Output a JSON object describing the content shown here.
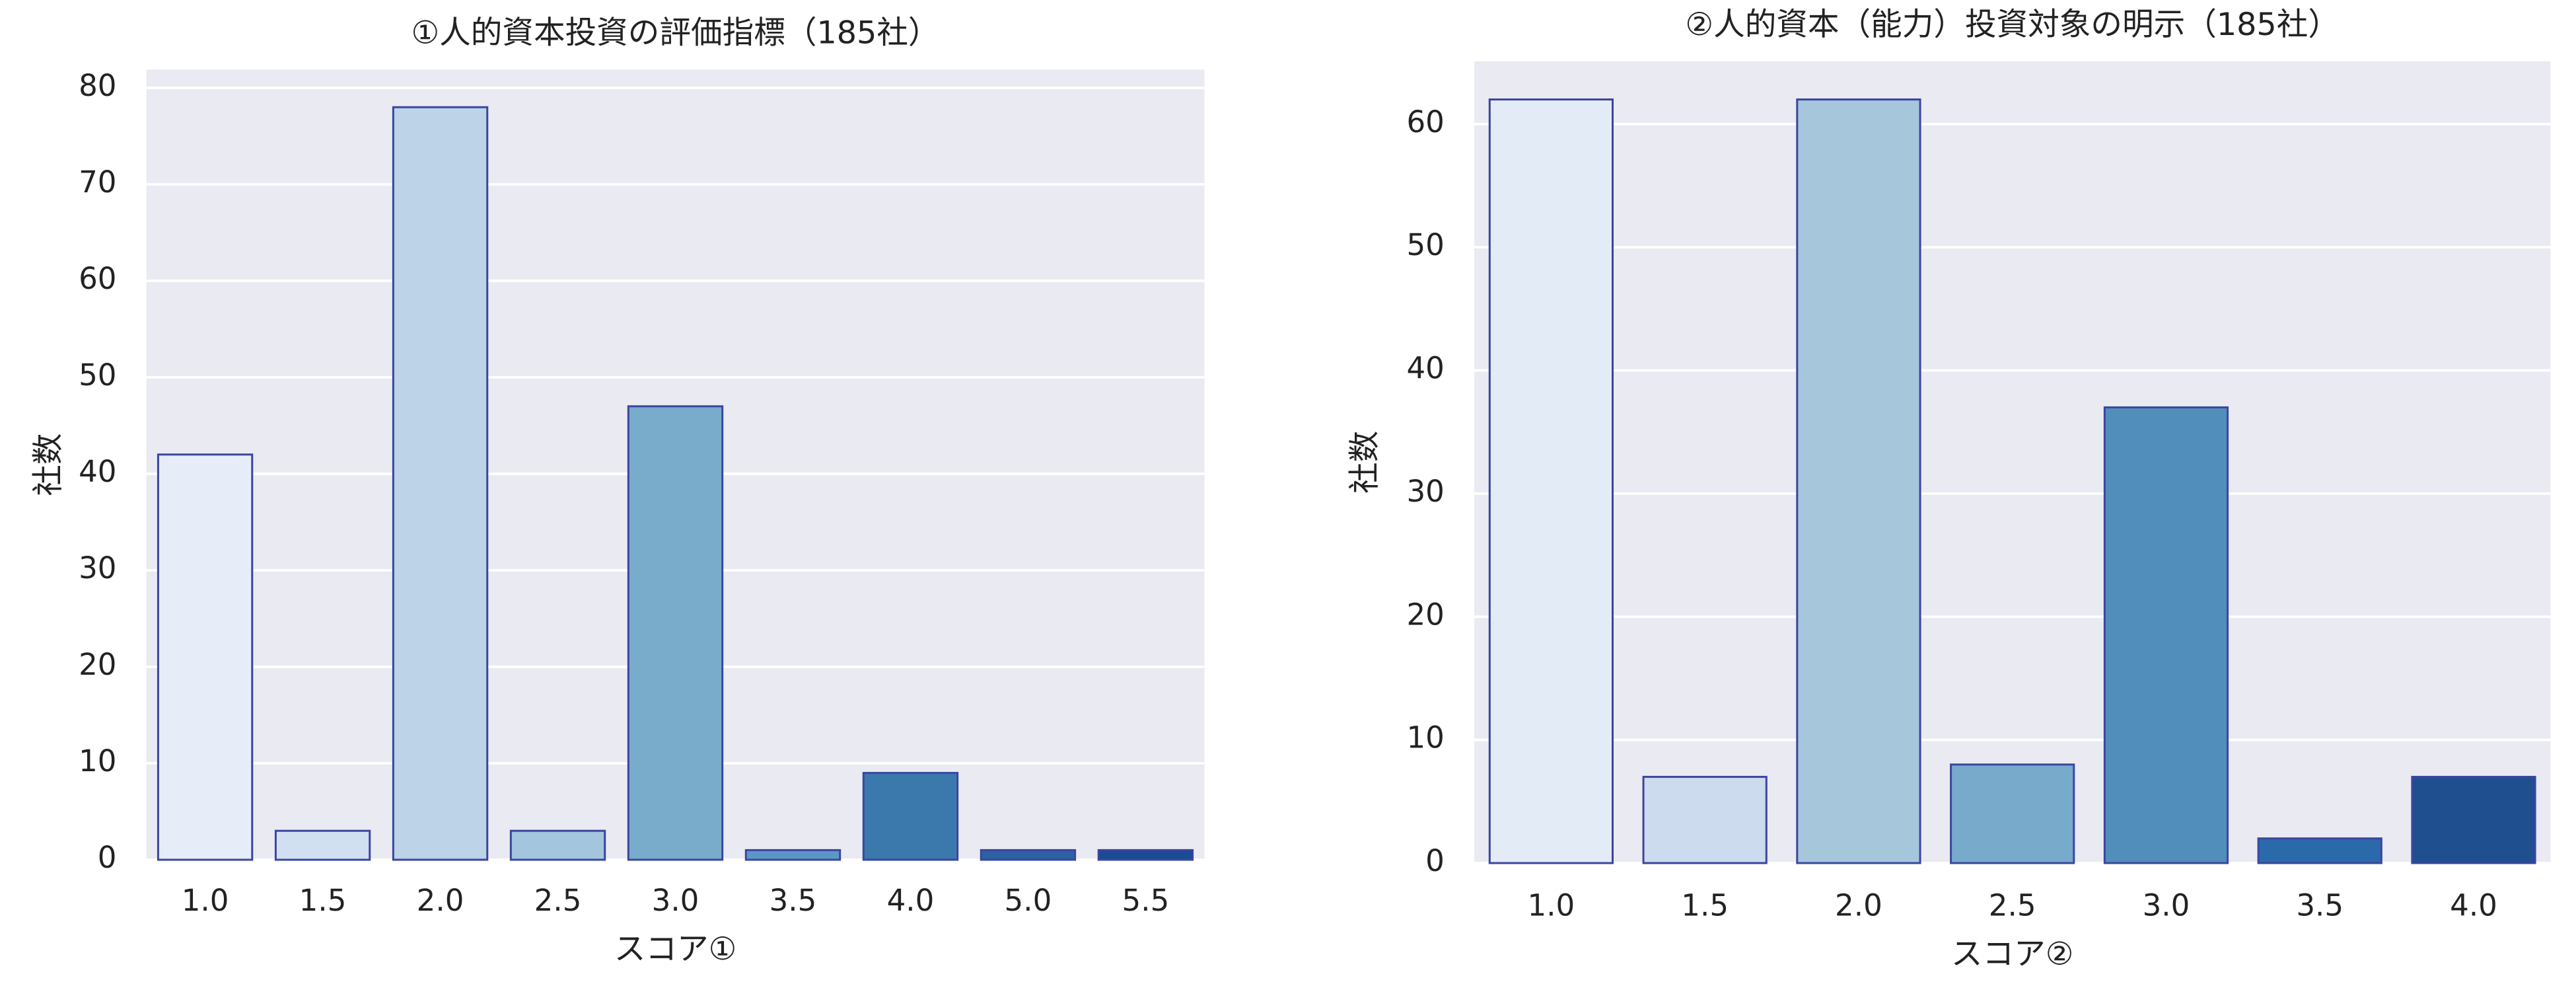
{
  "chart_data": [
    {
      "type": "bar",
      "title": "①人的資本投資の評価指標（185社）",
      "x_label": "スコア①",
      "y_label": "社数",
      "categories": [
        "1.0",
        "1.5",
        "2.0",
        "2.5",
        "3.0",
        "3.5",
        "4.0",
        "5.0",
        "5.5"
      ],
      "values": [
        42,
        3,
        78,
        3,
        47,
        1,
        9,
        1,
        1
      ],
      "colors": [
        "#e6edf8",
        "#d1e0f1",
        "#bdd3e7",
        "#a3c5de",
        "#79abcb",
        "#5b97c5",
        "#3b79ad",
        "#2b62a2",
        "#1a4c92"
      ],
      "edge_color": "#3a46a0",
      "ylim": [
        0,
        81.9
      ],
      "yticks": [
        0,
        10,
        20,
        30,
        40,
        50,
        60,
        70,
        80
      ],
      "grid": true
    },
    {
      "type": "bar",
      "title": "②人的資本（能力）投資対象の明示（185社）",
      "x_label": "スコア②",
      "y_label": "社数",
      "categories": [
        "1.0",
        "1.5",
        "2.0",
        "2.5",
        "3.0",
        "3.5",
        "4.0"
      ],
      "values": [
        62,
        7,
        62,
        8,
        37,
        2,
        7
      ],
      "colors": [
        "#e3ebf6",
        "#ccdbed",
        "#a6c6dc",
        "#77aacb",
        "#518ebb",
        "#2b6aaa",
        "#1f4f8f"
      ],
      "edge_color": "#3a46a0",
      "ylim": [
        0,
        65.1
      ],
      "yticks": [
        0,
        10,
        20,
        30,
        40,
        50,
        60
      ],
      "grid": true
    }
  ]
}
